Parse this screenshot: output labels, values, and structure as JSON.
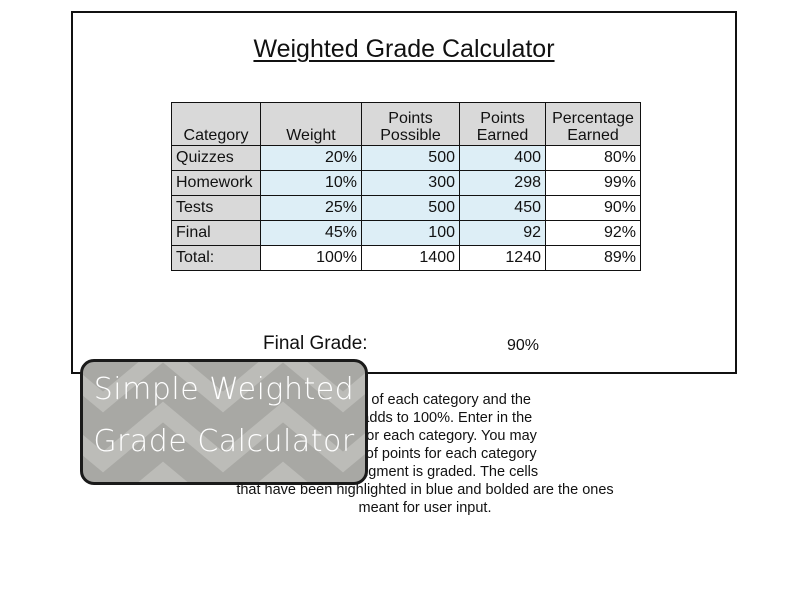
{
  "title": "Weighted Grade Calculator",
  "table": {
    "headers": [
      [
        "Category"
      ],
      [
        "Weight"
      ],
      [
        "Points",
        "Possible"
      ],
      [
        "Points",
        "Earned"
      ],
      [
        "Percentage",
        "Earned"
      ]
    ],
    "rows": [
      {
        "category": "Quizzes",
        "weight": "20%",
        "possible": "500",
        "earned": "400",
        "percentage": "80%"
      },
      {
        "category": "Homework",
        "weight": "10%",
        "possible": "300",
        "earned": "298",
        "percentage": "99%"
      },
      {
        "category": "Tests",
        "weight": "25%",
        "possible": "500",
        "earned": "450",
        "percentage": "90%"
      },
      {
        "category": "Final",
        "weight": "45%",
        "possible": "100",
        "earned": "92",
        "percentage": "92%"
      }
    ],
    "total": {
      "category": "Total:",
      "weight": "100%",
      "possible": "1400",
      "earned": "1240",
      "percentage": "89%"
    }
  },
  "final_grade": {
    "label": "Final Grade:",
    "value": "90%"
  },
  "instructions": [
    "e name of each category and the",
    "re this adds to 100%. Enter in the",
    "earned for each category. You may",
    "amount of points for each category",
    "new assigment is graded. The cells",
    "that have been highlighted in blue and bolded are the ones",
    "meant for user input."
  ],
  "badge": {
    "line1": "Simple Weighted",
    "line2": "Grade Calculator"
  },
  "colors": {
    "input_cell": "#ddeef6",
    "header_cell": "#d9d9d9",
    "badge_bg": "#a8a8a4",
    "badge_stripe": "#bcbcb8"
  }
}
